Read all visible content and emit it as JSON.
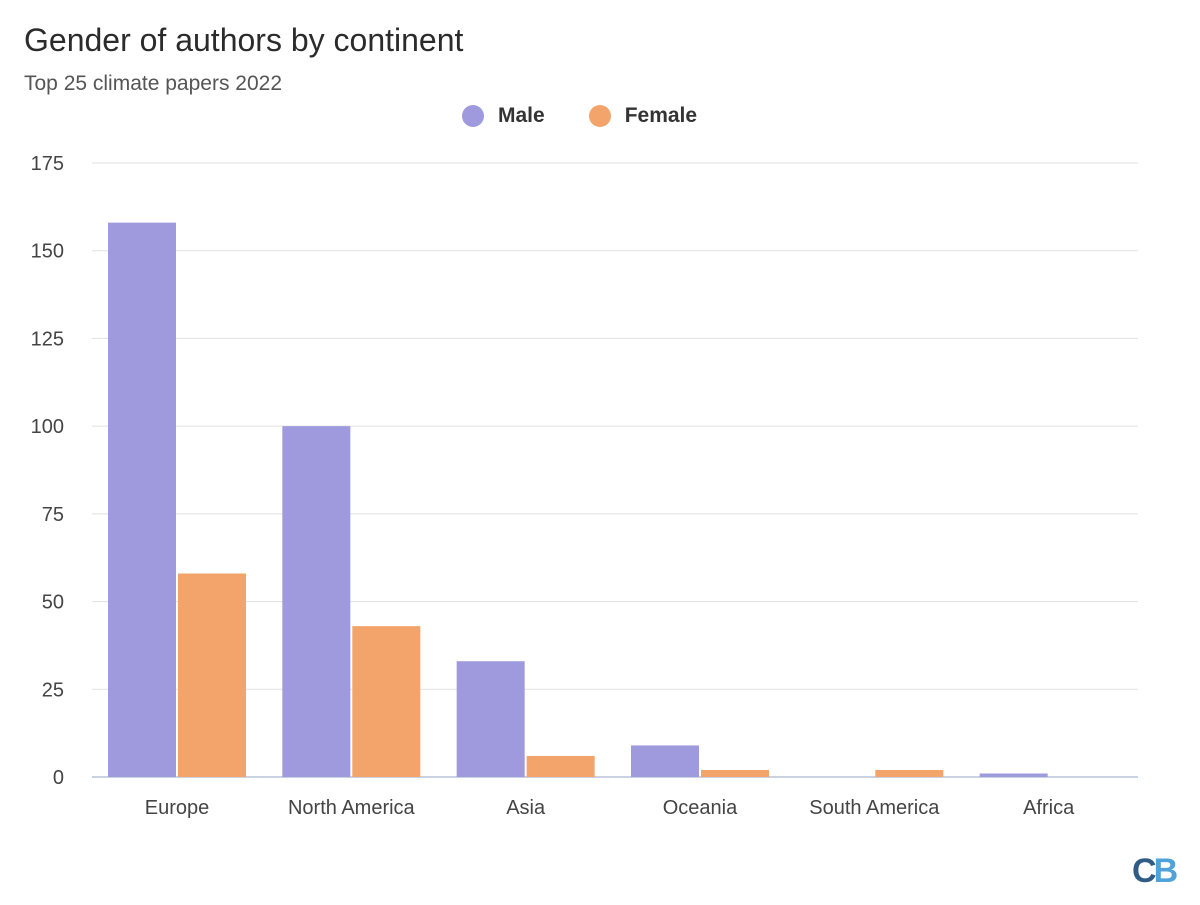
{
  "chart_data": {
    "type": "bar",
    "title": "Gender of authors by continent",
    "subtitle": "Top 25 climate papers 2022",
    "categories": [
      "Europe",
      "North America",
      "Asia",
      "Oceania",
      "South America",
      "Africa"
    ],
    "series": [
      {
        "name": "Male",
        "color": "#9f9ade",
        "values": [
          158,
          100,
          33,
          9,
          0,
          1
        ]
      },
      {
        "name": "Female",
        "color": "#f2a46a",
        "values": [
          58,
          43,
          6,
          2,
          2,
          0
        ]
      }
    ],
    "ylim": [
      0,
      175
    ],
    "yticks": [
      0,
      25,
      50,
      75,
      100,
      125,
      150,
      175
    ],
    "grid": true,
    "legend_position": "top-center"
  },
  "logo": {
    "c": "C",
    "b": "B"
  }
}
